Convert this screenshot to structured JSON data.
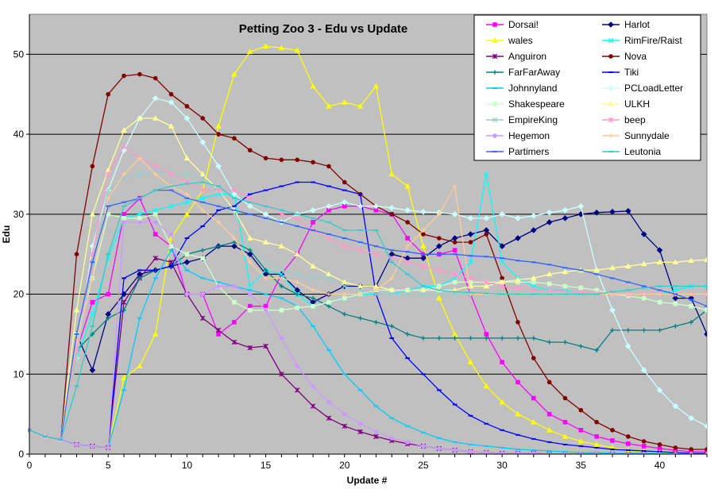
{
  "chart_data": {
    "type": "line",
    "title": "Petting Zoo 3 - Edu vs Update",
    "xlabel": "Update #",
    "ylabel": "Edu",
    "xlim": [
      0,
      43
    ],
    "ylim": [
      0,
      55
    ],
    "x_ticks": [
      0,
      5,
      10,
      15,
      20,
      25,
      30,
      35,
      40
    ],
    "y_ticks": [
      0,
      10,
      20,
      30,
      40,
      50
    ],
    "x_tick_labels": [
      "0",
      "5",
      "10",
      "15",
      "20",
      "25",
      "30",
      "35",
      "40"
    ],
    "y_tick_labels": [
      "0",
      "10",
      "20",
      "30",
      "40",
      "50"
    ],
    "grid": "horizontal",
    "legend_position": "top-right",
    "legend_columns": 2,
    "series": [
      {
        "name": "Dorsai!",
        "color": "#ff00ff",
        "marker": "square",
        "values": [
          3,
          2.2,
          1.8,
          13,
          19,
          20,
          30,
          32,
          27.5,
          26,
          20,
          20,
          15,
          16.5,
          18.5,
          18.5,
          22.5,
          25,
          29,
          30.5,
          31,
          31,
          30.5,
          30,
          27,
          25,
          25,
          25.5,
          20,
          15,
          11.5,
          9,
          7,
          5,
          4,
          3,
          2.2,
          1.7,
          1.3,
          1,
          0.7,
          0.5,
          0.3,
          0.3
        ]
      },
      {
        "name": "Harlot",
        "color": "#000080",
        "marker": "diamond",
        "values": [
          3,
          2.2,
          1.8,
          15,
          10.5,
          17.5,
          20,
          22.5,
          23,
          23.5,
          24,
          24.5,
          26,
          26,
          25,
          22.5,
          22.5,
          20.5,
          19,
          20,
          21,
          21,
          21,
          25,
          24.5,
          24.5,
          26,
          27,
          27.5,
          28,
          26,
          27,
          28,
          29,
          29.5,
          30,
          30.2,
          30.3,
          30.4,
          27.5,
          25.5,
          19.5,
          19.5,
          15
        ]
      },
      {
        "name": "wales",
        "color": "#ffff00",
        "marker": "triangle",
        "values": [
          3,
          2.2,
          1.8,
          1.2,
          1,
          0.8,
          9.5,
          11,
          15,
          27,
          30,
          33,
          41,
          47.5,
          50.3,
          51,
          50.8,
          50.5,
          46,
          43.5,
          44,
          43.5,
          46,
          35,
          33.5,
          26,
          19.5,
          15,
          11.5,
          8.5,
          6.5,
          5,
          4,
          3,
          2.2,
          1.6,
          1.2,
          0.8,
          0.5,
          0.3,
          0.2,
          0.1,
          0.1,
          0.1
        ]
      },
      {
        "name": "RimFire/Raist",
        "color": "#00ffff",
        "marker": "x",
        "values": [
          3,
          2.2,
          1.8,
          12,
          17.5,
          24.5,
          29.5,
          30,
          30.5,
          31,
          31.5,
          32,
          32.5,
          32.5,
          21,
          23,
          22.5,
          20,
          18.5,
          19,
          19.5,
          20,
          20,
          20,
          20.5,
          21,
          21,
          22,
          24,
          35,
          24,
          22,
          21,
          20.5,
          20.5,
          20,
          20,
          20,
          20,
          20,
          20,
          20.5,
          21,
          21
        ]
      },
      {
        "name": "Anguiron",
        "color": "#800080",
        "marker": "star",
        "values": [
          3,
          2.2,
          1.8,
          1.2,
          1,
          0.8,
          19,
          22,
          24.5,
          24,
          20,
          17,
          15.5,
          14,
          13.3,
          13.5,
          10,
          8,
          6,
          4.5,
          3.5,
          2.8,
          2.2,
          1.7,
          1.3,
          1,
          0.7,
          0.5,
          0.3,
          0.2,
          0.1,
          0.1,
          0.1,
          0,
          0,
          0,
          0,
          0,
          0,
          0,
          0,
          0,
          0,
          0
        ]
      },
      {
        "name": "Nova",
        "color": "#800000",
        "marker": "circle",
        "values": [
          3,
          2.2,
          1.8,
          25,
          36,
          45,
          47.3,
          47.5,
          47,
          45,
          43.5,
          42,
          40,
          39.5,
          38,
          37,
          36.8,
          36.8,
          36.5,
          36,
          34,
          32.5,
          31,
          30,
          29,
          27.5,
          27,
          26.5,
          26.5,
          27.5,
          22,
          16.5,
          12,
          9,
          7,
          5.5,
          4,
          3,
          2.2,
          1.6,
          1.2,
          0.8,
          0.6,
          0.6
        ]
      },
      {
        "name": "FarFarAway",
        "color": "#008080",
        "marker": "plus",
        "values": [
          3,
          2.2,
          1.8,
          13,
          15,
          17,
          18,
          22,
          23,
          23.5,
          25,
          25.5,
          26,
          26.5,
          25.5,
          23,
          21,
          20,
          19.5,
          18.5,
          17.5,
          17,
          16.5,
          16,
          15,
          14.5,
          14.5,
          14.5,
          14.5,
          14.5,
          14.5,
          14.5,
          14.5,
          14,
          14,
          13.5,
          13,
          15.5,
          15.5,
          15.5,
          15.5,
          16,
          16.5,
          18
        ]
      },
      {
        "name": "Tiki",
        "color": "#0000ff",
        "marker": "dash",
        "values": [
          3,
          2.2,
          1.8,
          1.2,
          1,
          0.8,
          22,
          23,
          23,
          23.5,
          27,
          28.5,
          30.5,
          31,
          32.5,
          33,
          33.5,
          34,
          34,
          33.5,
          33,
          32.5,
          20,
          14.5,
          12,
          10,
          8,
          6.2,
          4.8,
          3.8,
          3,
          2.4,
          1.9,
          1.5,
          1.2,
          1,
          0.8,
          0.6,
          0.5,
          0.4,
          0.3,
          0.2,
          0.1,
          0.1
        ]
      },
      {
        "name": "Johnnyland",
        "color": "#00ccff",
        "marker": "dash",
        "values": [
          3,
          2.2,
          1.8,
          1.2,
          1,
          0.8,
          8,
          17,
          22,
          25.5,
          23,
          22,
          21.5,
          21,
          20.5,
          20,
          19.5,
          18.5,
          16,
          13,
          10,
          8,
          6,
          4.5,
          3.5,
          2.7,
          2,
          1.5,
          1.2,
          1,
          0.8,
          0.6,
          0.5,
          0.4,
          0.3,
          0.2,
          0.2,
          0.1,
          0.1,
          0.1,
          0.1,
          0.1,
          0,
          0
        ]
      },
      {
        "name": "PCLoadLetter",
        "color": "#ccffff",
        "marker": "diamond",
        "values": [
          3,
          2.2,
          1.8,
          12,
          26,
          33,
          38,
          42,
          44.5,
          44,
          42,
          39,
          36,
          32.5,
          31,
          30,
          29,
          30,
          30.5,
          31,
          31.5,
          31,
          31,
          30.8,
          30.5,
          30.3,
          30.2,
          30,
          29.5,
          29.5,
          30,
          29.5,
          29.8,
          30.2,
          30.5,
          31,
          23,
          18,
          13.5,
          10.5,
          8,
          6,
          4.5,
          3.5
        ]
      },
      {
        "name": "Shakespeare",
        "color": "#ccffcc",
        "marker": "square",
        "values": [
          3,
          2.2,
          1.8,
          15,
          22,
          30,
          29.5,
          29.5,
          30,
          26,
          25,
          24.5,
          21,
          19,
          18,
          18,
          18,
          18.3,
          18.5,
          19,
          19.5,
          20,
          20.5,
          20.5,
          20.5,
          20.5,
          21,
          21.5,
          21.5,
          21.5,
          21.5,
          21.5,
          21.5,
          21.3,
          21,
          20.8,
          20.5,
          20,
          19.8,
          19.5,
          19,
          18.8,
          18.5,
          18
        ]
      },
      {
        "name": "ULKH",
        "color": "#ffff99",
        "marker": "triangle",
        "values": [
          3,
          2.2,
          1.8,
          18,
          30,
          35.5,
          40.5,
          42,
          42,
          41,
          37,
          35,
          33,
          30.5,
          27,
          26.5,
          26,
          25,
          23.5,
          22.5,
          21.5,
          21,
          21,
          20.5,
          20.5,
          20.5,
          20.5,
          20.5,
          21,
          21,
          21.5,
          21.8,
          22,
          22.5,
          22.8,
          23,
          23,
          23.3,
          23.5,
          23.8,
          24,
          24,
          24.2,
          24.3
        ]
      },
      {
        "name": "EmpireKing",
        "color": "#99cccc",
        "marker": "x",
        "values": [
          3,
          2.2,
          1.8,
          12,
          24,
          33,
          34.5,
          35,
          35.5,
          35,
          35,
          34.5,
          33,
          30,
          26,
          24,
          23,
          22.5,
          22,
          22,
          21,
          20.5,
          20,
          20,
          20,
          20,
          20,
          20,
          20,
          20,
          20,
          20,
          20,
          20,
          20,
          20,
          20,
          20,
          20,
          20,
          20,
          20,
          20,
          20
        ]
      },
      {
        "name": "beep",
        "color": "#ff99cc",
        "marker": "star",
        "values": [
          3,
          2.2,
          1.8,
          13,
          25,
          35,
          38.5,
          37,
          36,
          35,
          34,
          33,
          33,
          33,
          32,
          31,
          30,
          29.5,
          28,
          27,
          26,
          25.5,
          25,
          24.5,
          24,
          23.5,
          23,
          22.5,
          22,
          21.5,
          21,
          20.8,
          20.5,
          20.5,
          20.3,
          20.2,
          20.1,
          20,
          20,
          20,
          20,
          20,
          20,
          20
        ]
      },
      {
        "name": "Hegemon",
        "color": "#cc99ff",
        "marker": "circle",
        "values": [
          3,
          2.2,
          1.8,
          1.2,
          1,
          0.8,
          29,
          29,
          29,
          27.5,
          20,
          20,
          21,
          21,
          20,
          18,
          14.5,
          11,
          8.5,
          6.5,
          5,
          3.8,
          2.8,
          2,
          1.5,
          1,
          0.7,
          0.5,
          0.3,
          0.2,
          0.1,
          0.1,
          0.1,
          0,
          0,
          0,
          0,
          0,
          0,
          0,
          0,
          0,
          0,
          0
        ]
      },
      {
        "name": "Sunnydale",
        "color": "#ffcc99",
        "marker": "plus",
        "values": [
          3,
          2.2,
          1.8,
          14,
          22,
          32,
          35,
          37,
          35,
          33.5,
          32.5,
          30.5,
          29,
          27,
          24,
          22,
          22,
          21.5,
          20.5,
          20,
          20,
          20,
          20.5,
          22,
          26,
          28,
          30,
          33.5,
          20,
          20,
          20,
          20,
          20,
          20,
          20,
          20,
          20,
          20,
          20,
          20,
          20,
          20,
          20,
          20
        ]
      },
      {
        "name": "Partimers",
        "color": "#3366ff",
        "marker": "dash",
        "values": [
          3,
          2.2,
          1.8,
          15,
          24,
          31,
          31.5,
          32,
          33,
          33,
          32,
          31.5,
          31,
          30.5,
          30,
          29.5,
          29,
          28.5,
          28,
          27.5,
          27,
          26.5,
          26,
          25.5,
          25.3,
          25,
          25,
          25,
          24.8,
          24.7,
          24.5,
          24.2,
          24,
          23.7,
          23.3,
          23,
          22.5,
          22,
          21.5,
          21,
          20.5,
          20,
          19.3,
          18.5
        ]
      },
      {
        "name": "Leutonia",
        "color": "#33cccc",
        "marker": "dash",
        "values": [
          3,
          2.2,
          1.8,
          8.5,
          16,
          25,
          31,
          32,
          33,
          33.5,
          33.8,
          34,
          33.5,
          32,
          31.5,
          31,
          30.5,
          30,
          29.5,
          29,
          28,
          28,
          28,
          24,
          22.5,
          21,
          20.5,
          20.3,
          20.2,
          20.1,
          20,
          20,
          20,
          20,
          20,
          20,
          20,
          20.3,
          20.5,
          20.8,
          21,
          21,
          21,
          21
        ]
      }
    ]
  }
}
